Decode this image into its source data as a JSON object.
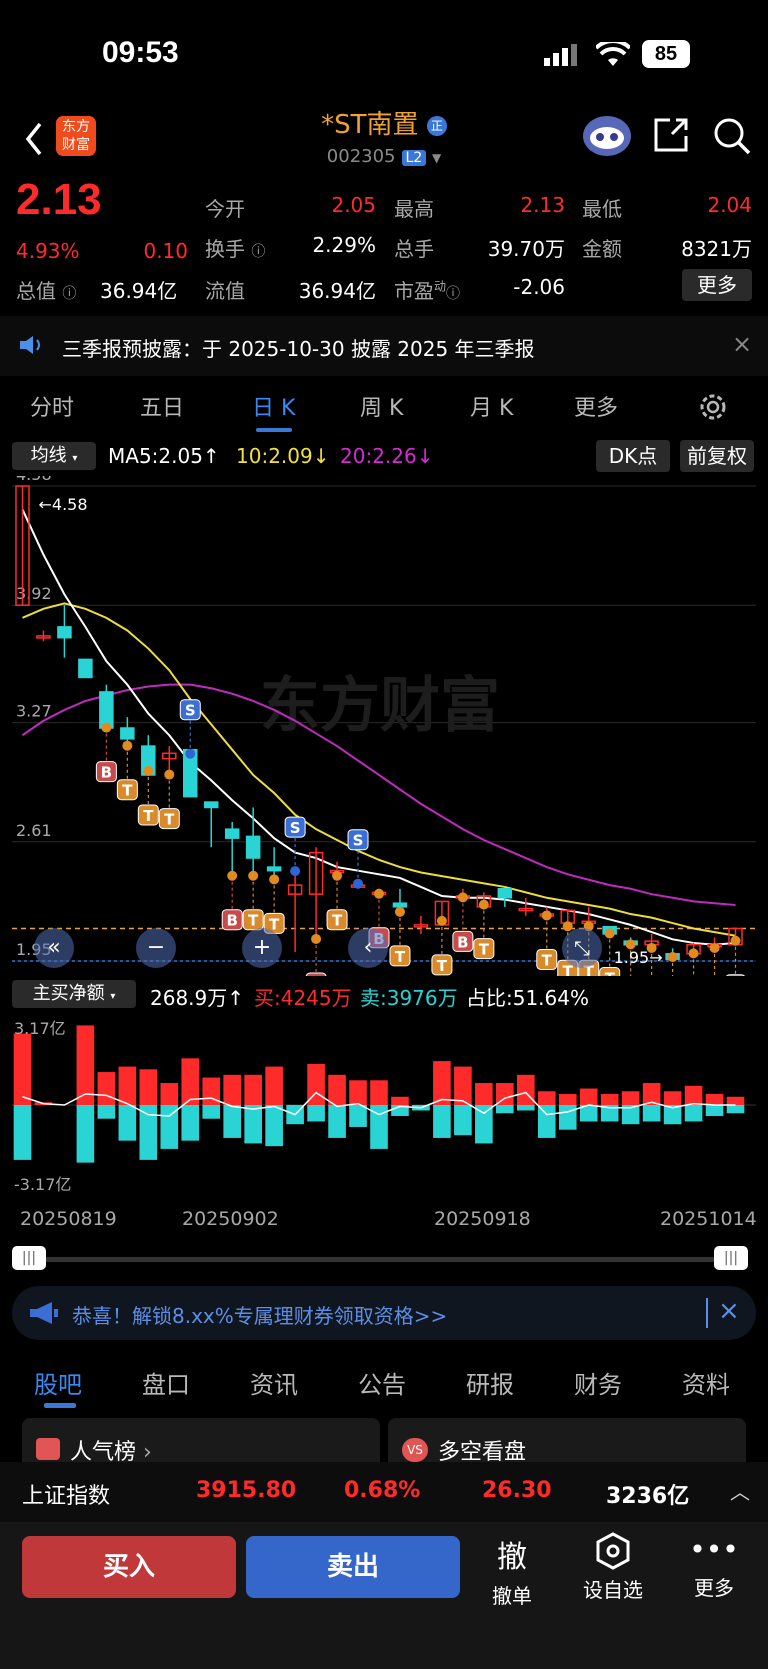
{
  "status_bar": {
    "time": "09:53",
    "battery": "85"
  },
  "header": {
    "logo_line1": "东方",
    "logo_line2": "财富",
    "title": "*ST南置",
    "code": "002305",
    "level_badge": "L2",
    "zheng_badge": "正"
  },
  "quote": {
    "price": "2.13",
    "change_pct": "4.93%",
    "change": "0.10",
    "labels": {
      "open": "今开",
      "high": "最高",
      "low": "最低",
      "turnover": "换手",
      "volume": "总手",
      "amount": "金额",
      "total_value": "总值",
      "float_value": "流值",
      "pe": "市盈",
      "pe_sup": "动"
    },
    "values": {
      "open": "2.05",
      "high": "2.13",
      "low": "2.04",
      "turnover": "2.29%",
      "volume": "39.70万",
      "amount": "8321万",
      "total_value": "36.94亿",
      "float_value": "36.94亿",
      "pe": "-2.06"
    },
    "more_button": "更多"
  },
  "notice": {
    "text": "三季报预披露：于 2025-10-30 披露 2025 年三季报"
  },
  "kline_tabs": [
    "分时",
    "五日",
    "日 K",
    "周 K",
    "月 K",
    "更多"
  ],
  "kline_active": "日 K",
  "indicator_bar": {
    "selector": "均线",
    "ma5": "MA5:2.05↑",
    "ma10": "10:2.09↓",
    "ma20": "20:2.26↓",
    "dk_button": "DK点",
    "adjust_button": "前复权"
  },
  "price_axis": [
    "4.58",
    "3.92",
    "3.27",
    "2.61",
    "1.95"
  ],
  "max_marker": "4.58",
  "min_marker": "1.95",
  "watermark": "东方财富",
  "chart_data": {
    "type": "candlestick",
    "current_price": 2.13,
    "ylim": [
      1.95,
      4.58
    ],
    "candles": [
      {
        "o": 3.92,
        "c": 4.58,
        "h": 4.58,
        "l": 3.92
      },
      {
        "o": 3.75,
        "c": 3.75,
        "h": 3.78,
        "l": 3.72
      },
      {
        "o": 3.8,
        "c": 3.74,
        "h": 3.92,
        "l": 3.63
      },
      {
        "o": 3.62,
        "c": 3.52,
        "h": 3.62,
        "l": 3.52
      },
      {
        "o": 3.44,
        "c": 3.24,
        "h": 3.48,
        "l": 3.22
      },
      {
        "o": 3.24,
        "c": 3.18,
        "h": 3.3,
        "l": 3.12
      },
      {
        "o": 3.14,
        "c": 2.98,
        "h": 3.2,
        "l": 2.98
      },
      {
        "o": 3.07,
        "c": 3.1,
        "h": 3.14,
        "l": 2.96
      },
      {
        "o": 3.12,
        "c": 2.86,
        "h": 3.12,
        "l": 2.86
      },
      {
        "o": 2.83,
        "c": 2.8,
        "h": 2.83,
        "l": 2.58
      },
      {
        "o": 2.68,
        "c": 2.63,
        "h": 2.72,
        "l": 2.4
      },
      {
        "o": 2.64,
        "c": 2.52,
        "h": 2.8,
        "l": 2.4
      },
      {
        "o": 2.47,
        "c": 2.45,
        "h": 2.58,
        "l": 2.38
      },
      {
        "o": 2.32,
        "c": 2.37,
        "h": 2.47,
        "l": 2.0
      },
      {
        "o": 2.32,
        "c": 2.55,
        "h": 2.58,
        "l": 2.05
      },
      {
        "o": 2.45,
        "c": 2.45,
        "h": 2.5,
        "l": 2.4
      },
      {
        "o": 2.37,
        "c": 2.37,
        "h": 2.4,
        "l": 2.35
      },
      {
        "o": 2.33,
        "c": 2.33,
        "h": 2.35,
        "l": 2.3
      },
      {
        "o": 2.27,
        "c": 2.25,
        "h": 2.35,
        "l": 2.2
      },
      {
        "o": 2.15,
        "c": 2.15,
        "h": 2.2,
        "l": 2.1
      },
      {
        "o": 2.15,
        "c": 2.28,
        "h": 2.28,
        "l": 2.15
      },
      {
        "o": 2.31,
        "c": 2.31,
        "h": 2.35,
        "l": 2.28
      },
      {
        "o": 2.25,
        "c": 2.31,
        "h": 2.33,
        "l": 2.24
      },
      {
        "o": 2.35,
        "c": 2.3,
        "h": 2.35,
        "l": 2.25
      },
      {
        "o": 2.24,
        "c": 2.24,
        "h": 2.3,
        "l": 2.2
      },
      {
        "o": 2.21,
        "c": 2.21,
        "h": 2.25,
        "l": 2.18
      },
      {
        "o": 2.16,
        "c": 2.23,
        "h": 2.23,
        "l": 2.12
      },
      {
        "o": 2.17,
        "c": 2.17,
        "h": 2.25,
        "l": 2.12
      },
      {
        "o": 2.14,
        "c": 2.1,
        "h": 2.14,
        "l": 2.08
      },
      {
        "o": 2.06,
        "c": 2.04,
        "h": 2.08,
        "l": 2.02
      },
      {
        "o": 2.04,
        "c": 2.06,
        "h": 2.1,
        "l": 2.0
      },
      {
        "o": 1.99,
        "c": 1.96,
        "h": 2.02,
        "l": 1.95
      },
      {
        "o": 1.99,
        "c": 2.04,
        "h": 2.05,
        "l": 1.97
      },
      {
        "o": 2.04,
        "c": 2.04,
        "h": 2.08,
        "l": 2.0
      },
      {
        "o": 2.04,
        "c": 2.13,
        "h": 2.13,
        "l": 2.04
      }
    ],
    "ma5": [
      4.45,
      4.2,
      3.98,
      3.8,
      3.61,
      3.48,
      3.32,
      3.2,
      3.05,
      2.95,
      2.84,
      2.74,
      2.63,
      2.55,
      2.52,
      2.47,
      2.45,
      2.43,
      2.41,
      2.36,
      2.31,
      2.3,
      2.3,
      2.29,
      2.27,
      2.25,
      2.23,
      2.21,
      2.18,
      2.15,
      2.11,
      2.07,
      2.05,
      2.04,
      2.05
    ],
    "ma10": [
      3.85,
      3.9,
      3.93,
      3.9,
      3.85,
      3.78,
      3.68,
      3.56,
      3.4,
      3.26,
      3.12,
      2.98,
      2.88,
      2.76,
      2.68,
      2.62,
      2.56,
      2.51,
      2.47,
      2.44,
      2.42,
      2.4,
      2.38,
      2.36,
      2.33,
      2.3,
      2.28,
      2.26,
      2.24,
      2.21,
      2.19,
      2.16,
      2.13,
      2.11,
      2.09
    ],
    "ma20": [
      3.2,
      3.28,
      3.34,
      3.39,
      3.42,
      3.45,
      3.47,
      3.48,
      3.48,
      3.46,
      3.43,
      3.39,
      3.34,
      3.28,
      3.21,
      3.14,
      3.06,
      2.98,
      2.9,
      2.82,
      2.75,
      2.68,
      2.62,
      2.57,
      2.52,
      2.47,
      2.43,
      2.4,
      2.37,
      2.35,
      2.32,
      2.3,
      2.28,
      2.27,
      2.26
    ],
    "signals": [
      {
        "i": 4,
        "t": "B"
      },
      {
        "i": 5,
        "t": "T"
      },
      {
        "i": 6,
        "t": "T"
      },
      {
        "i": 7,
        "t": "T"
      },
      {
        "i": 8,
        "t": "S"
      },
      {
        "i": 10,
        "t": "B"
      },
      {
        "i": 11,
        "t": "T"
      },
      {
        "i": 12,
        "t": "T"
      },
      {
        "i": 13,
        "t": "S"
      },
      {
        "i": 14,
        "t": "B"
      },
      {
        "i": 15,
        "t": "T"
      },
      {
        "i": 16,
        "t": "S"
      },
      {
        "i": 17,
        "t": "B"
      },
      {
        "i": 18,
        "t": "T"
      },
      {
        "i": 20,
        "t": "T"
      },
      {
        "i": 21,
        "t": "B"
      },
      {
        "i": 22,
        "t": "T"
      },
      {
        "i": 25,
        "t": "T"
      },
      {
        "i": 26,
        "t": "T"
      },
      {
        "i": 27,
        "t": "T"
      },
      {
        "i": 28,
        "t": "T"
      },
      {
        "i": 29,
        "t": "T"
      },
      {
        "i": 30,
        "t": "T"
      },
      {
        "i": 31,
        "t": "T"
      },
      {
        "i": 32,
        "t": "T"
      },
      {
        "i": 33,
        "t": "T"
      },
      {
        "i": 34,
        "t": "T"
      }
    ],
    "netflow": {
      "buy": [
        2.6,
        0.1,
        0.0,
        2.9,
        1.2,
        1.4,
        1.3,
        0.8,
        1.7,
        1.0,
        1.1,
        1.1,
        1.4,
        0.0,
        1.5,
        1.1,
        0.9,
        0.9,
        0.3,
        0.0,
        1.6,
        1.4,
        0.8,
        0.8,
        1.1,
        0.5,
        0.4,
        0.6,
        0.4,
        0.5,
        0.8,
        0.5,
        0.7,
        0.4,
        0.3
      ],
      "sell": [
        -2.0,
        0.0,
        0.0,
        -2.1,
        -0.5,
        -1.3,
        -2.0,
        -1.6,
        -1.3,
        -0.5,
        -1.2,
        -1.4,
        -1.5,
        -0.7,
        -0.6,
        -1.2,
        -0.8,
        -1.6,
        -0.4,
        -0.2,
        -1.2,
        -1.1,
        -1.4,
        -0.3,
        -0.2,
        -1.2,
        -0.9,
        -0.6,
        -0.6,
        -0.7,
        -0.6,
        -0.7,
        -0.6,
        -0.4,
        -0.3
      ],
      "ylim": [
        -3.17,
        3.17
      ]
    }
  },
  "netflow_bar": {
    "selector": "主买净额",
    "net": "268.9万↑",
    "buy": "买:4245万",
    "sell": "卖:3976万",
    "ratio": "占比:51.64%",
    "axis_top": "3.17亿",
    "axis_bottom": "-3.17亿"
  },
  "date_axis": [
    "20250819",
    "20250902",
    "20250918",
    "20251014"
  ],
  "promo": {
    "text": "恭喜！解锁8.xx%专属理财券领取资格>>"
  },
  "bottom_tabs": [
    "股吧",
    "盘口",
    "资讯",
    "公告",
    "研报",
    "财务",
    "资料"
  ],
  "bottom_active": "股吧",
  "cards": {
    "left": "人气榜",
    "right": "多空看盘"
  },
  "index_bar": {
    "name": "上证指数",
    "value": "3915.80",
    "pct": "0.68%",
    "change": "26.30",
    "amount": "3236亿"
  },
  "actions": {
    "buy": "买入",
    "sell": "卖出",
    "cancel_glyph": "撤",
    "cancel_label": "撤单",
    "watch_label": "设自选",
    "more_label": "更多"
  },
  "colors": {
    "up": "#ff2b2b",
    "down": "#2ad4d4",
    "accent": "#f0a32e",
    "blue": "#3b6fd6"
  }
}
